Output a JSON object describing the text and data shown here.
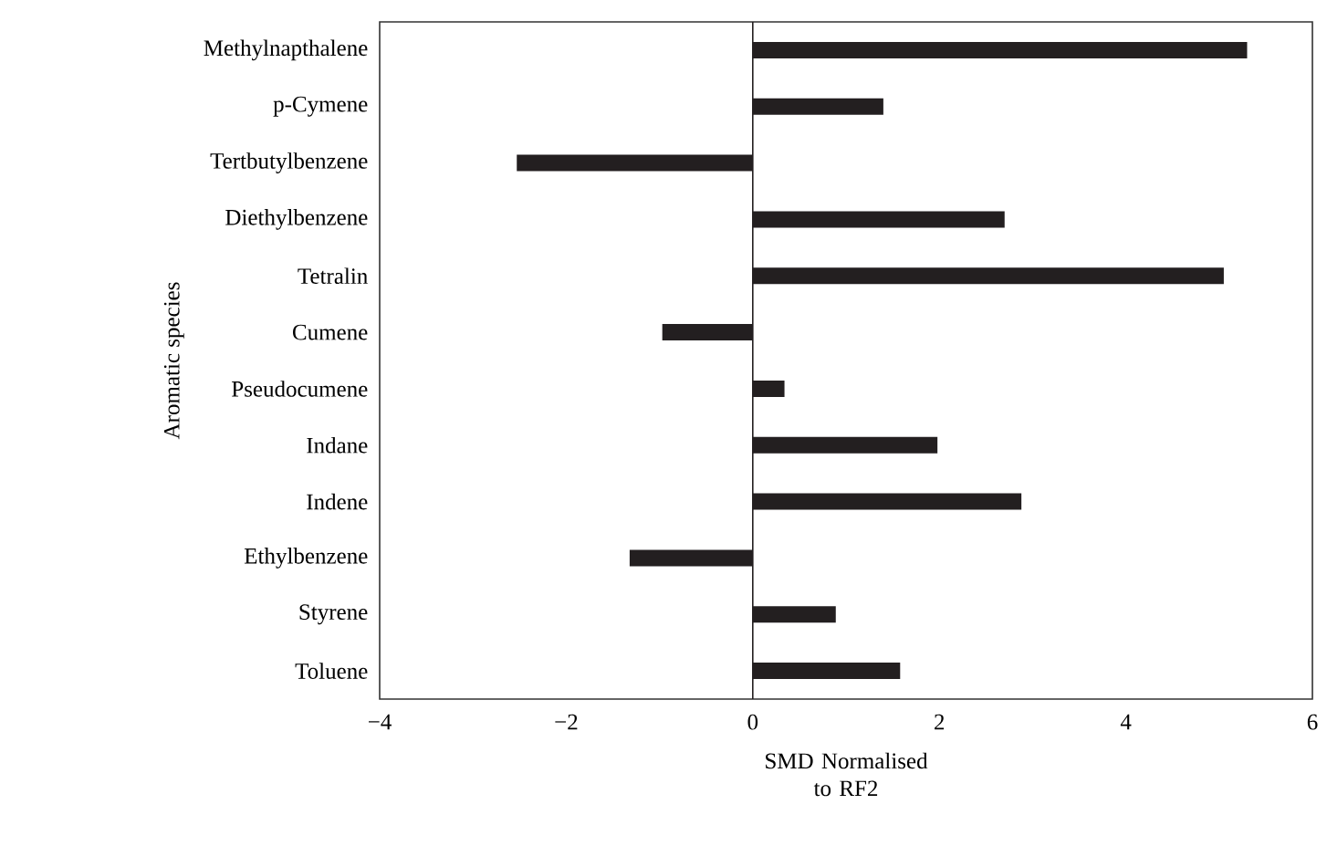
{
  "chart_data": {
    "type": "bar",
    "orientation": "horizontal",
    "categories": [
      "Methylnapthalene",
      "p-Cymene",
      "Tertbutylbenzene",
      "Diethylbenzene",
      "Tetralin",
      "Cumene",
      "Pseudocumene",
      "Indane",
      "Indene",
      "Ethylbenzene",
      "Styrene",
      "Toluene"
    ],
    "values": [
      5.3,
      1.4,
      -2.53,
      2.7,
      5.05,
      -0.97,
      0.34,
      1.98,
      2.88,
      -1.32,
      0.89,
      1.58
    ],
    "color": "#231f20",
    "xlabel": "SMD Normalised to RF2",
    "ylabel": "Aromatic species",
    "xlim": [
      -4,
      6
    ],
    "xticks": [
      {
        "value": -4,
        "label": "−4"
      },
      {
        "value": -2,
        "label": "−2"
      },
      0,
      2,
      4,
      6
    ],
    "ref_lines": [
      {
        "axis": "x",
        "value": 0,
        "color": "#231f20"
      }
    ],
    "grid": false
  }
}
